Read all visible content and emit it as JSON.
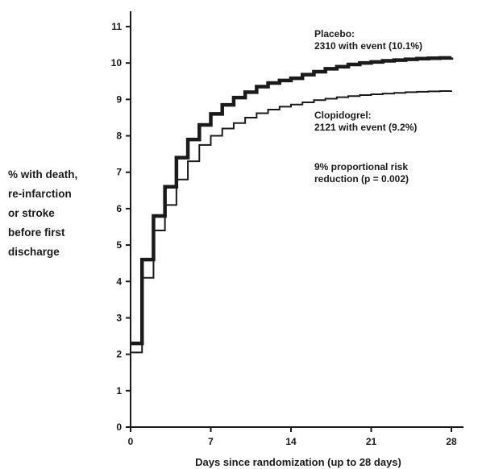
{
  "chart_data": {
    "type": "line",
    "step": true,
    "xlabel": "Days since randomization (up to 28 days)",
    "ylabel_lines": [
      "% with death,",
      "re-infarction",
      "or stroke",
      "before first",
      "discharge"
    ],
    "xlim": [
      0,
      28
    ],
    "ylim": [
      0,
      11
    ],
    "x_ticks": [
      0,
      7,
      14,
      21,
      28
    ],
    "y_ticks": [
      0,
      1,
      2,
      3,
      4,
      5,
      6,
      7,
      8,
      9,
      10,
      11
    ],
    "grid": false,
    "series": [
      {
        "name": "Placebo",
        "color": "#1a1a1a",
        "style": "thick",
        "x": [
          0,
          1,
          2,
          3,
          4,
          5,
          6,
          7,
          8,
          9,
          10,
          11,
          12,
          13,
          14,
          15,
          16,
          17,
          18,
          19,
          20,
          21,
          22,
          23,
          24,
          25,
          26,
          27,
          28
        ],
        "y": [
          2.3,
          4.6,
          5.8,
          6.6,
          7.4,
          7.9,
          8.3,
          8.6,
          8.85,
          9.05,
          9.2,
          9.35,
          9.45,
          9.52,
          9.58,
          9.68,
          9.76,
          9.84,
          9.9,
          9.96,
          10.0,
          10.03,
          10.06,
          10.08,
          10.1,
          10.12,
          10.13,
          10.14,
          10.15
        ]
      },
      {
        "name": "Clopidogrel",
        "color": "#1a1a1a",
        "style": "thin",
        "x": [
          0,
          1,
          2,
          3,
          4,
          5,
          6,
          7,
          8,
          9,
          10,
          11,
          12,
          13,
          14,
          15,
          16,
          17,
          18,
          19,
          20,
          21,
          22,
          23,
          24,
          25,
          26,
          27,
          28
        ],
        "y": [
          2.05,
          4.1,
          5.4,
          6.1,
          6.8,
          7.3,
          7.75,
          8.0,
          8.2,
          8.35,
          8.5,
          8.62,
          8.72,
          8.8,
          8.86,
          8.92,
          8.98,
          9.02,
          9.06,
          9.09,
          9.12,
          9.14,
          9.16,
          9.18,
          9.2,
          9.21,
          9.22,
          9.23,
          9.24
        ]
      }
    ],
    "annotations": [
      {
        "lines": [
          "Placebo:",
          "2310 with event (10.1%)"
        ]
      },
      {
        "lines": [
          "Clopidogrel:",
          "2121 with event (9.2%)"
        ]
      },
      {
        "lines": [
          "9% proportional risk",
          "reduction (p = 0.002)"
        ]
      }
    ]
  }
}
